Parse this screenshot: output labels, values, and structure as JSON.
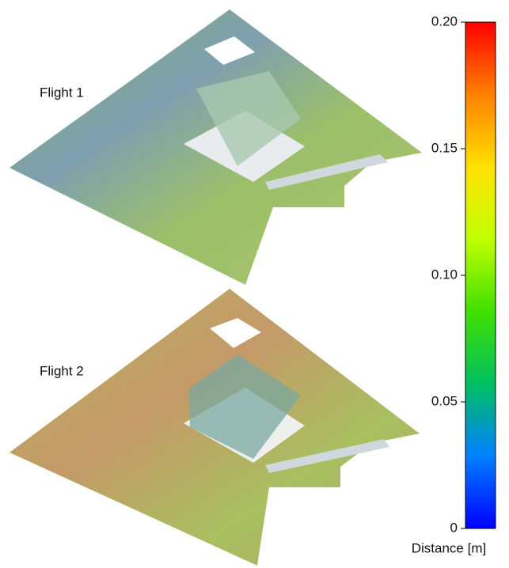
{
  "panels": [
    {
      "label": "Flight 1"
    },
    {
      "label": "Flight 2"
    }
  ],
  "colorbar": {
    "label": "Distance [m]",
    "lim": [
      0,
      0.2
    ],
    "ticks": [
      0,
      0.05,
      {
        "value": 0.1,
        "label": "0.10"
      },
      0.15,
      {
        "value": 0.2,
        "label": "0.20"
      }
    ],
    "colors": [
      "#0000ff",
      "#0080ff",
      "#00c060",
      "#40e000",
      "#c0ff00",
      "#ffe000",
      "#ff8000",
      "#ff0000"
    ]
  }
}
